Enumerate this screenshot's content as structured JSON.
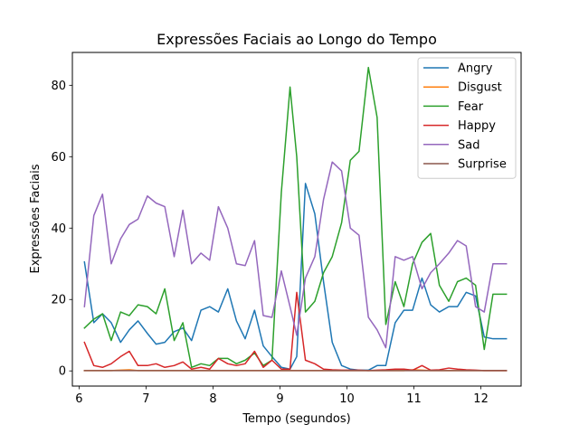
{
  "chart_data": {
    "type": "line",
    "title": "Expressões Faciais ao Longo do Tempo",
    "xlabel": "Tempo (segundos)",
    "ylabel": "Expressões Faciais",
    "xlim": [
      5.9,
      12.6
    ],
    "ylim": [
      -4.25,
      89.2
    ],
    "xticks": [
      6,
      7,
      8,
      9,
      10,
      11,
      12
    ],
    "yticks": [
      0,
      20,
      40,
      60,
      80
    ],
    "grid": false,
    "legend_position": "top-right",
    "x": [
      6.08,
      6.22,
      6.35,
      6.48,
      6.62,
      6.75,
      6.88,
      7.02,
      7.15,
      7.28,
      7.42,
      7.55,
      7.68,
      7.82,
      7.95,
      8.08,
      8.22,
      8.35,
      8.48,
      8.62,
      8.75,
      8.88,
      9.02,
      9.15,
      9.25,
      9.38,
      9.52,
      9.65,
      9.78,
      9.92,
      10.05,
      10.18,
      10.32,
      10.45,
      10.58,
      10.72,
      10.85,
      10.98,
      11.12,
      11.25,
      11.38,
      11.52,
      11.65,
      11.78,
      11.92,
      12.05,
      12.18,
      12.38
    ],
    "series": [
      {
        "name": "Angry",
        "color": "#1f77b4",
        "values": [
          30.5,
          13.5,
          16.0,
          13.5,
          8.0,
          11.5,
          14.0,
          10.5,
          7.5,
          8.0,
          11.0,
          12.0,
          8.5,
          17.0,
          18.0,
          16.5,
          23.0,
          14.0,
          9.0,
          17.0,
          7.0,
          4.0,
          1.0,
          0.5,
          4.0,
          52.5,
          44.0,
          25.0,
          8.0,
          1.5,
          0.5,
          0.2,
          0.2,
          1.5,
          1.5,
          13.5,
          17.0,
          17.0,
          26.0,
          18.5,
          16.5,
          18.0,
          18.0,
          22.0,
          21.0,
          9.5,
          9.0,
          9.0
        ]
      },
      {
        "name": "Disgust",
        "color": "#ff7f0e",
        "values": [
          0.1,
          0.1,
          0.1,
          0.1,
          0.2,
          0.3,
          0.1,
          0.1,
          0.1,
          0.1,
          0.1,
          0.1,
          0.1,
          0.1,
          0.1,
          0.1,
          0.1,
          0.1,
          0.1,
          0.1,
          0.1,
          0.1,
          0.1,
          0.1,
          0.1,
          0.1,
          0.1,
          0.1,
          0.1,
          0.1,
          0.1,
          0.1,
          0.1,
          0.1,
          0.1,
          0.1,
          0.1,
          0.3,
          0.2,
          0.1,
          0.1,
          0.1,
          0.1,
          0.1,
          0.1,
          0.1,
          0.1,
          0.1
        ]
      },
      {
        "name": "Fear",
        "color": "#2ca02c",
        "values": [
          12.0,
          14.5,
          16.0,
          8.5,
          16.5,
          15.5,
          18.5,
          18.0,
          16.0,
          23.0,
          8.5,
          13.5,
          1.0,
          2.0,
          1.5,
          3.5,
          3.5,
          2.0,
          3.0,
          5.0,
          1.5,
          3.0,
          50.0,
          79.5,
          60.0,
          16.5,
          19.5,
          27.5,
          32.0,
          41.5,
          59.0,
          61.5,
          85.0,
          71.0,
          13.0,
          25.0,
          18.0,
          30.0,
          36.0,
          38.5,
          24.0,
          19.5,
          25.0,
          26.0,
          24.0,
          6.0,
          21.5,
          21.5
        ]
      },
      {
        "name": "Happy",
        "color": "#d62728",
        "values": [
          8.0,
          1.5,
          1.0,
          2.0,
          4.0,
          5.5,
          1.5,
          1.5,
          2.0,
          1.0,
          1.5,
          2.5,
          0.5,
          1.0,
          0.5,
          3.5,
          2.0,
          1.5,
          2.0,
          5.5,
          1.0,
          3.0,
          0.5,
          0.5,
          22.0,
          3.0,
          2.0,
          0.5,
          0.3,
          0.2,
          0.2,
          0.2,
          0.1,
          0.2,
          0.3,
          0.5,
          0.5,
          0.2,
          1.5,
          0.2,
          0.3,
          0.8,
          0.5,
          0.3,
          0.2,
          0.1,
          0.1,
          0.1
        ]
      },
      {
        "name": "Sad",
        "color": "#9467bd",
        "values": [
          18.0,
          43.5,
          49.5,
          30.0,
          37.0,
          41.0,
          42.5,
          49.0,
          47.0,
          46.0,
          32.0,
          45.0,
          30.0,
          33.0,
          31.0,
          46.0,
          40.0,
          30.0,
          29.5,
          36.5,
          15.5,
          15.0,
          28.0,
          18.0,
          10.0,
          26.0,
          32.0,
          48.0,
          58.5,
          56.0,
          40.0,
          38.0,
          15.0,
          11.5,
          6.5,
          32.0,
          31.0,
          32.0,
          23.0,
          27.5,
          30.0,
          33.0,
          36.5,
          35.0,
          18.0,
          16.5,
          30.0,
          30.0
        ]
      },
      {
        "name": "Surprise",
        "color": "#8c564b",
        "values": [
          0.1,
          0.1,
          0.1,
          0.1,
          0.1,
          0.1,
          0.1,
          0.1,
          0.1,
          0.1,
          0.1,
          0.1,
          0.1,
          0.1,
          0.1,
          0.1,
          0.1,
          0.1,
          0.1,
          0.1,
          0.1,
          0.1,
          0.1,
          0.1,
          0.1,
          0.1,
          0.1,
          0.1,
          0.1,
          0.1,
          0.1,
          0.1,
          0.1,
          0.1,
          0.1,
          0.1,
          0.1,
          0.1,
          0.1,
          0.1,
          0.1,
          0.1,
          0.1,
          0.1,
          0.1,
          0.1,
          0.1,
          0.1
        ]
      }
    ]
  }
}
